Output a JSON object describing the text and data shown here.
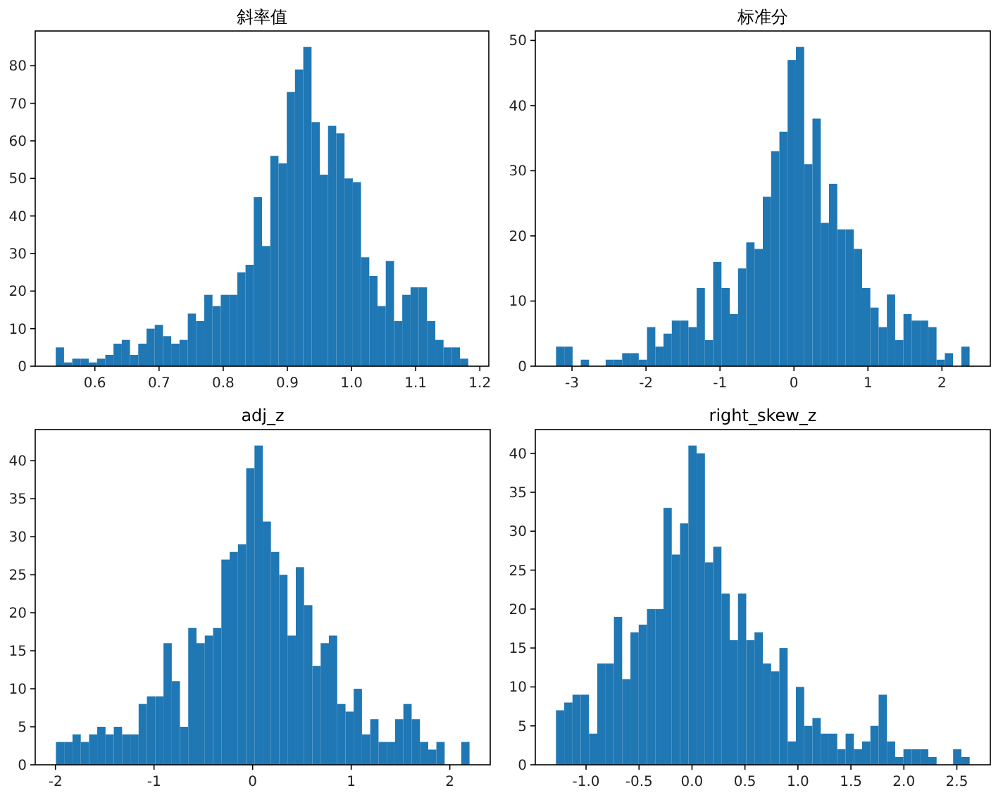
{
  "chart_data": [
    {
      "type": "histogram",
      "title": "斜率值",
      "color": "#1f77b4",
      "xlim": [
        0.507,
        1.214
      ],
      "ylim": [
        0,
        89.25
      ],
      "xticks": [
        0.6,
        0.7,
        0.8,
        0.9,
        {
          "value": 1,
          "label": "1.0"
        },
        1.1,
        1.2
      ],
      "yticks": [
        0,
        10,
        20,
        30,
        40,
        50,
        60,
        70,
        80
      ],
      "bins": [
        0.539,
        0.5519,
        0.5647,
        0.5776,
        0.5904,
        0.6033,
        0.6162,
        0.629,
        0.6419,
        0.6547,
        0.6676,
        0.6805,
        0.6933,
        0.7062,
        0.719,
        0.7319,
        0.7448,
        0.7576,
        0.7705,
        0.7833,
        0.7962,
        0.8091,
        0.8219,
        0.8348,
        0.8476,
        0.8605,
        0.8734,
        0.8862,
        0.8991,
        0.9119,
        0.9248,
        0.9377,
        0.9505,
        0.9634,
        0.9762,
        0.9891,
        1.002,
        1.0148,
        1.0277,
        1.0405,
        1.0534,
        1.0663,
        1.0791,
        1.092,
        1.1048,
        1.1177,
        1.1306,
        1.1434,
        1.1563,
        1.1691,
        1.182
      ],
      "values": [
        5,
        1,
        2,
        2,
        1,
        2,
        3,
        6,
        7,
        3,
        6,
        10,
        11,
        8,
        6,
        7,
        14,
        12,
        19,
        16,
        19,
        19,
        25,
        27,
        45,
        32,
        56,
        54,
        73,
        79,
        85,
        65,
        51,
        64,
        62,
        50,
        49,
        29,
        24,
        16,
        28,
        12,
        19,
        21,
        21,
        12,
        7,
        5,
        5,
        2
      ]
    },
    {
      "type": "histogram",
      "title": "标准分",
      "color": "#1f77b4",
      "xlim": [
        -3.496,
        2.654
      ],
      "ylim": [
        0,
        51.45
      ],
      "xticks": [
        -3,
        -2,
        -1,
        0,
        1,
        2
      ],
      "yticks": [
        0,
        10,
        20,
        30,
        40,
        50
      ],
      "bins": [
        -3.216,
        -3.104,
        -2.992,
        -2.881,
        -2.769,
        -2.657,
        -2.545,
        -2.433,
        -2.322,
        -2.21,
        -2.098,
        -1.986,
        -1.874,
        -1.763,
        -1.651,
        -1.539,
        -1.427,
        -1.315,
        -1.204,
        -1.092,
        -0.98,
        -0.868,
        -0.756,
        -0.645,
        -0.533,
        -0.421,
        -0.309,
        -0.197,
        -0.086,
        0.026,
        0.138,
        0.25,
        0.362,
        0.473,
        0.585,
        0.697,
        0.809,
        0.921,
        1.032,
        1.144,
        1.256,
        1.368,
        1.48,
        1.591,
        1.703,
        1.815,
        1.927,
        2.039,
        2.15,
        2.262,
        2.374
      ],
      "values": [
        3,
        3,
        0,
        1,
        0,
        0,
        1,
        1,
        2,
        2,
        1,
        6,
        3,
        5,
        7,
        7,
        6,
        12,
        4,
        16,
        12,
        8,
        15,
        19,
        18,
        26,
        33,
        36,
        47,
        49,
        31,
        38,
        22,
        28,
        21,
        21,
        18,
        12,
        9,
        6,
        11,
        4,
        8,
        7,
        7,
        6,
        1,
        2,
        0,
        3
      ]
    },
    {
      "type": "histogram",
      "title": "adj_z",
      "color": "#1f77b4",
      "xlim": [
        -2.205,
        2.41
      ],
      "ylim": [
        0,
        44.1
      ],
      "xticks": [
        -2,
        -1,
        0,
        1,
        2
      ],
      "yticks": [
        0,
        5,
        10,
        15,
        20,
        25,
        30,
        35,
        40
      ],
      "bins": [
        -1.995,
        -1.911,
        -1.827,
        -1.743,
        -1.659,
        -1.576,
        -1.492,
        -1.408,
        -1.324,
        -1.24,
        -1.156,
        -1.072,
        -0.988,
        -0.904,
        -0.82,
        -0.737,
        -0.653,
        -0.569,
        -0.485,
        -0.401,
        -0.317,
        -0.233,
        -0.149,
        -0.065,
        0.019,
        0.103,
        0.186,
        0.27,
        0.354,
        0.438,
        0.522,
        0.606,
        0.69,
        0.774,
        0.858,
        0.942,
        1.025,
        1.109,
        1.193,
        1.277,
        1.361,
        1.445,
        1.529,
        1.613,
        1.697,
        1.781,
        1.864,
        1.948,
        2.032,
        2.116,
        2.2
      ],
      "values": [
        3,
        3,
        4,
        3,
        4,
        5,
        4,
        5,
        4,
        4,
        8,
        9,
        9,
        16,
        11,
        5,
        18,
        16,
        17,
        18,
        27,
        28,
        29,
        39,
        42,
        32,
        28,
        25,
        17,
        26,
        21,
        13,
        16,
        17,
        8,
        7,
        10,
        4,
        6,
        3,
        3,
        6,
        8,
        6,
        3,
        2,
        3,
        0,
        0,
        3
      ]
    },
    {
      "type": "histogram",
      "title": "right_skew_z",
      "color": "#1f77b4",
      "xlim": [
        -1.479,
        2.816
      ],
      "ylim": [
        0,
        43.05
      ],
      "xticks": [
        {
          "value": -1,
          "label": "-1.0"
        },
        {
          "value": -0.5,
          "label": "-0.5"
        },
        {
          "value": 0,
          "label": "0.0"
        },
        {
          "value": 0.5,
          "label": "0.5"
        },
        {
          "value": 1,
          "label": "1.0"
        },
        {
          "value": 1.5,
          "label": "1.5"
        },
        {
          "value": 2,
          "label": "2.0"
        },
        {
          "value": 2.5,
          "label": "2.5"
        }
      ],
      "yticks": [
        0,
        5,
        10,
        15,
        20,
        25,
        30,
        35,
        40
      ],
      "bins": [
        -1.284,
        -1.206,
        -1.128,
        -1.05,
        -0.972,
        -0.894,
        -0.815,
        -0.737,
        -0.659,
        -0.581,
        -0.503,
        -0.425,
        -0.347,
        -0.269,
        -0.191,
        -0.113,
        -0.034,
        0.044,
        0.122,
        0.2,
        0.278,
        0.356,
        0.434,
        0.512,
        0.59,
        0.669,
        0.747,
        0.825,
        0.903,
        0.981,
        1.059,
        1.137,
        1.215,
        1.293,
        1.371,
        1.45,
        1.528,
        1.606,
        1.684,
        1.762,
        1.84,
        1.918,
        1.996,
        2.074,
        2.152,
        2.231,
        2.309,
        2.387,
        2.465,
        2.543,
        2.621
      ],
      "values": [
        7,
        8,
        9,
        9,
        4,
        13,
        13,
        19,
        11,
        17,
        18,
        20,
        20,
        33,
        27,
        31,
        41,
        40,
        26,
        28,
        22,
        16,
        22,
        16,
        17,
        13,
        12,
        15,
        3,
        10,
        5,
        6,
        4,
        4,
        2,
        4,
        2,
        3,
        5,
        9,
        3,
        1,
        2,
        2,
        2,
        1,
        0,
        0,
        2,
        1
      ]
    }
  ]
}
